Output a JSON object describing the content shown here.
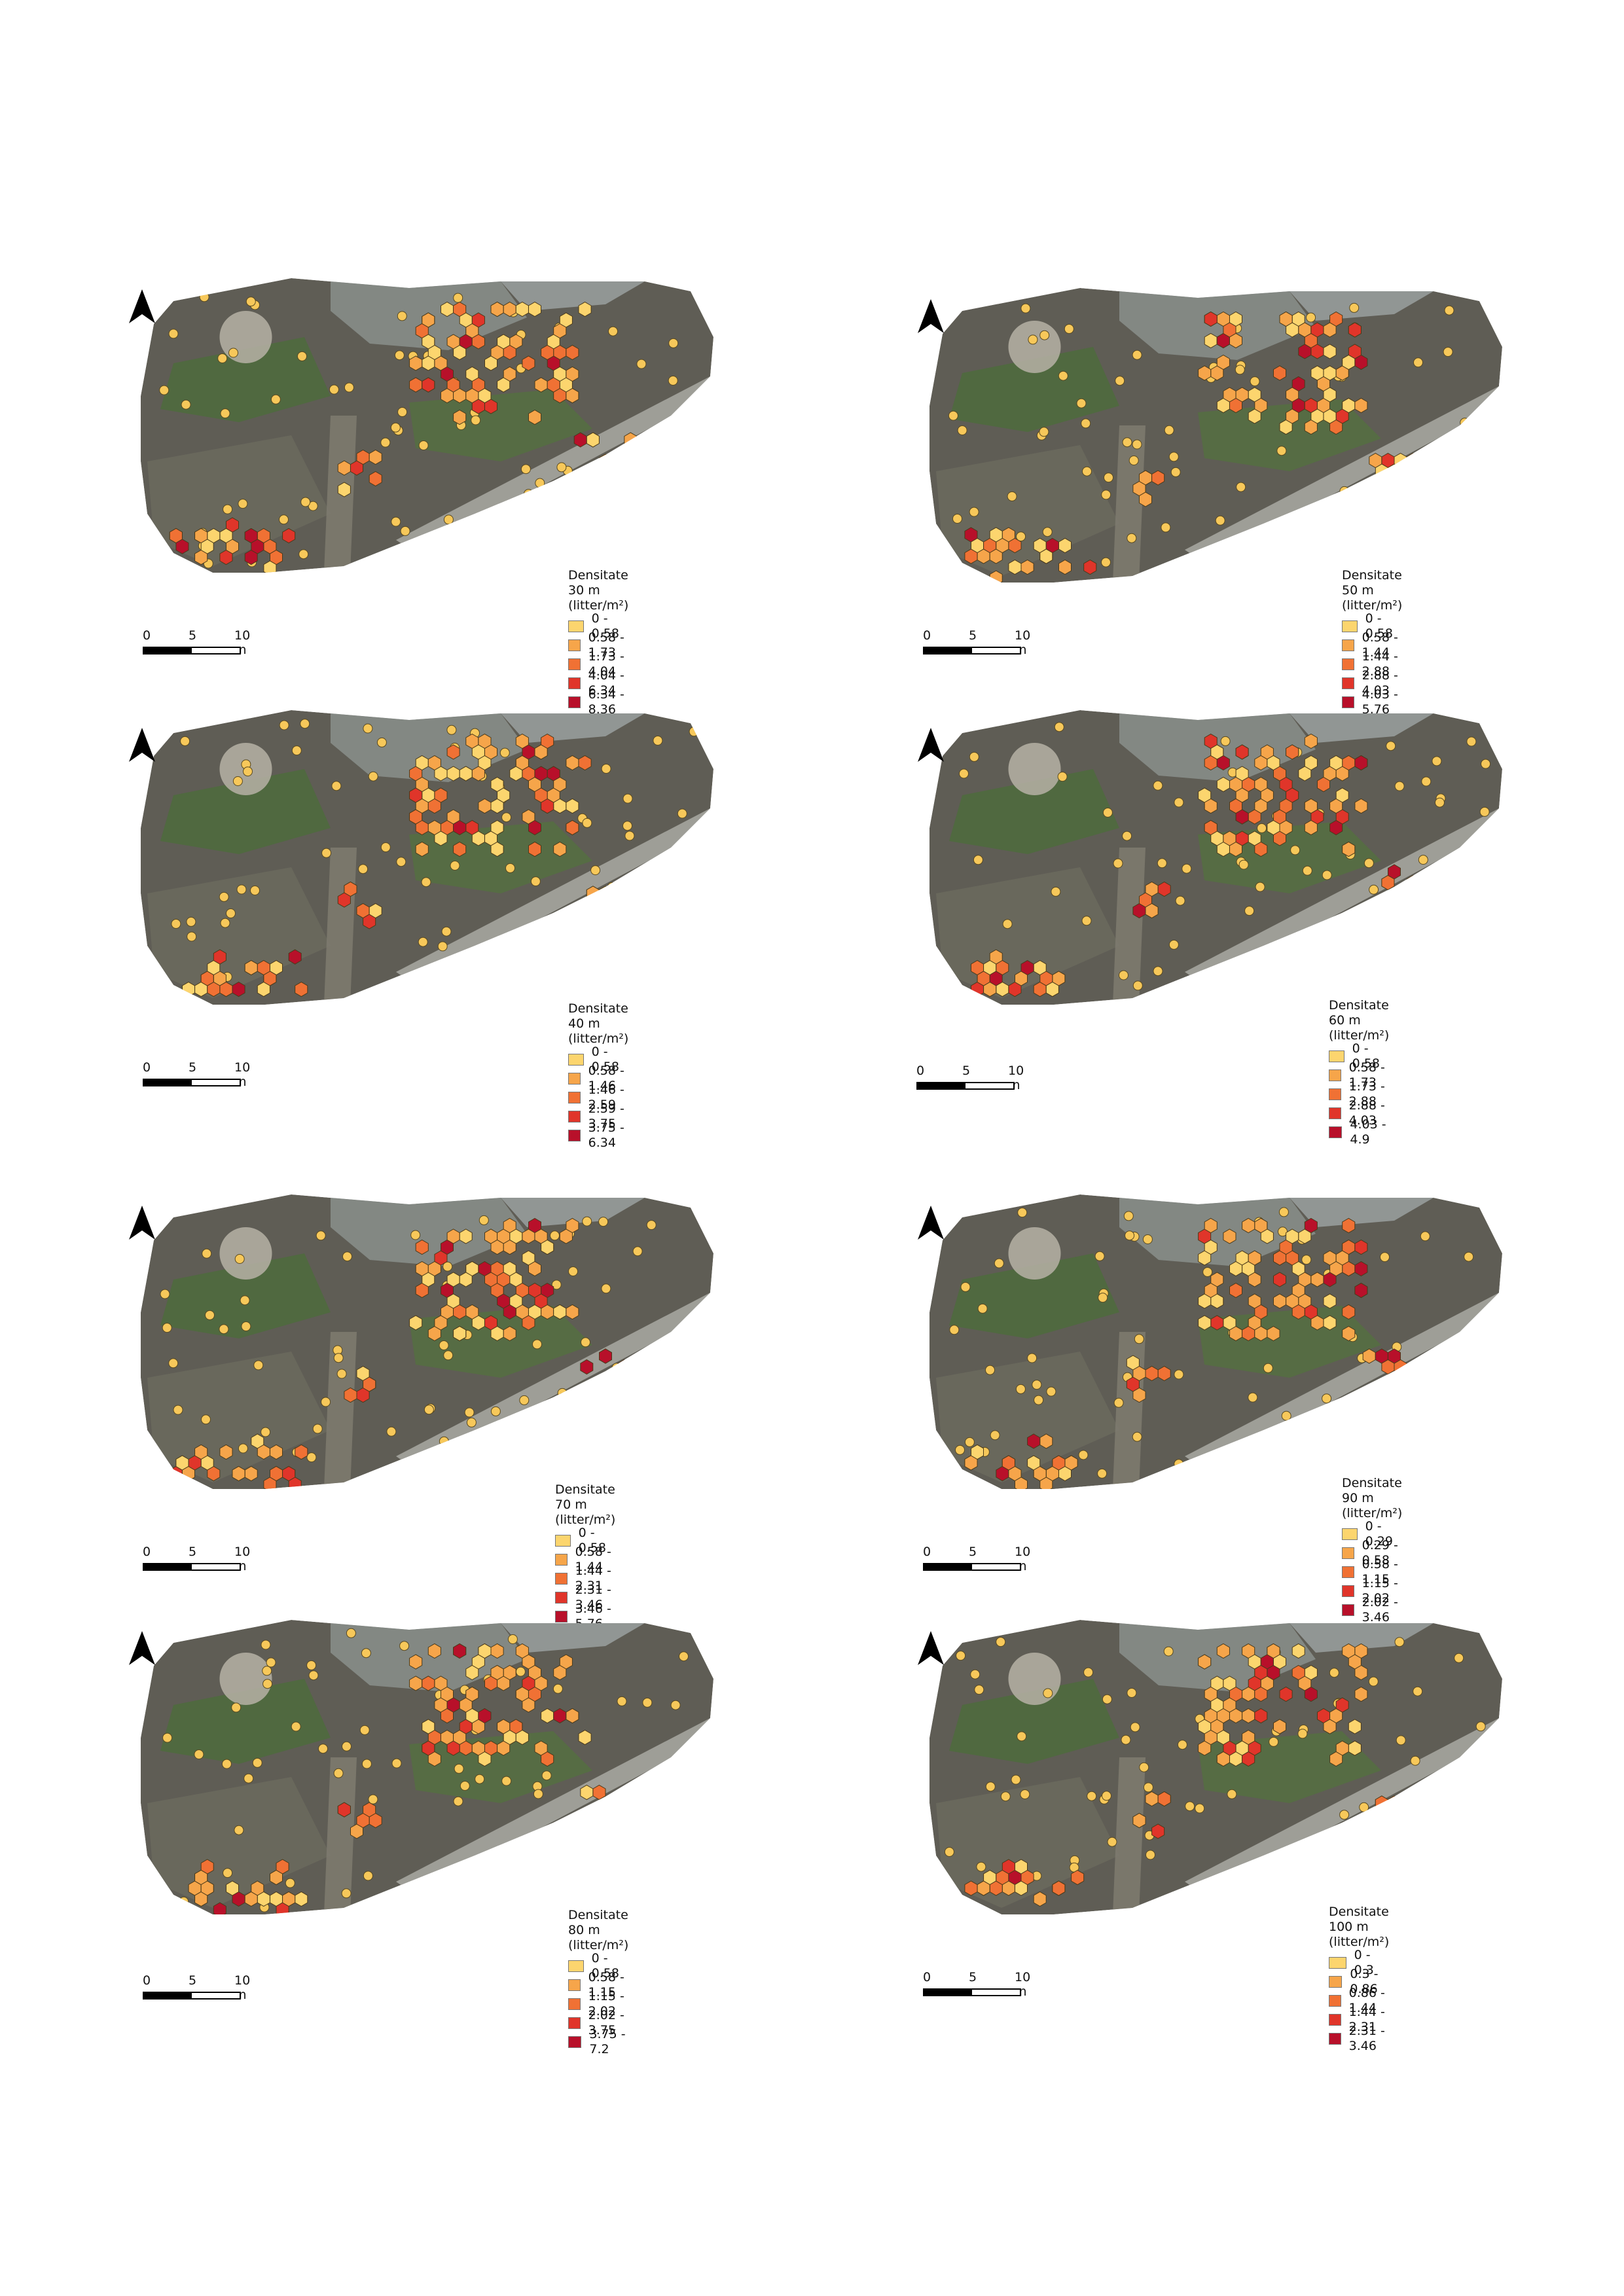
{
  "legend_colors": [
    "#fcd56e",
    "#f6a54a",
    "#f07134",
    "#e0352a",
    "#b8102a"
  ],
  "scale": {
    "labels": [
      "0",
      "5",
      "10 m"
    ]
  },
  "north_arrow_icon": "north-arrow-icon",
  "panels": [
    {
      "title": "Densitate 30 m (litter/m²)",
      "classes": [
        "0 - 0.58",
        "0.58 - 1.73",
        "1.73 - 4.04",
        "4.04 - 6.34",
        "6.34 - 8.36"
      ]
    },
    {
      "title": "Densitate 50 m (litter/m²)",
      "classes": [
        "0 - 0.58",
        "0.58 - 1.44",
        "1.44 - 2.88",
        "2.88 - 4.03",
        "4.03 - 5.76"
      ]
    },
    {
      "title": "Densitate 40 m (litter/m²)",
      "classes": [
        "0 - 0.58",
        "0.58 - 1.46",
        "1.46 - 2.59",
        "2.59 - 3.75",
        "3.75 - 6.34"
      ]
    },
    {
      "title": "Densitate 60 m (litter/m²)",
      "classes": [
        "0 - 0.58",
        "0.58 - 1.73",
        "1.73 - 2.88",
        "2.88 - 4.03",
        "4.03 - 4.9"
      ]
    },
    {
      "title": "Densitate 70 m (litter/m²)",
      "classes": [
        "0 - 0.58",
        "0.58 - 1.44",
        "1.44 - 2.31",
        "2.31 - 3.46",
        "3.46 - 5.76"
      ]
    },
    {
      "title": "Densitate 90 m (litter/m²)",
      "classes": [
        "0 - 0.29",
        "0.29 - 0.58",
        "0.58 - 1.15",
        "1.15 - 2.02",
        "2.02 - 3.46"
      ]
    },
    {
      "title": "Densitate 80 m (litter/m²)",
      "classes": [
        "0 - 0.58",
        "0.58 - 1.15",
        "1.15 - 2.02",
        "2.02 - 3.75",
        "3.75 - 7.2"
      ]
    },
    {
      "title": "Densitate 100 m (litter/m²)",
      "classes": [
        "0 - 0.3",
        "0.3 - 0.86",
        "0.86 - 1.44",
        "1.44 - 2.31",
        "2.31 - 3.46"
      ]
    }
  ]
}
